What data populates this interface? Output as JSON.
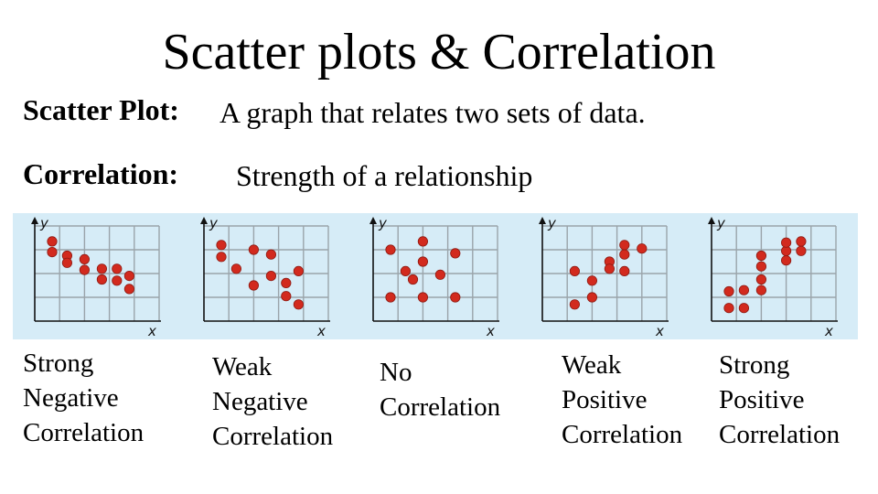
{
  "slide": {
    "title": "Scatter plots & Correlation",
    "definitions": [
      {
        "term": "Scatter Plot:",
        "text": "A graph that relates two sets of data."
      },
      {
        "term": "Correlation:",
        "text": "Strength of a relationship"
      }
    ]
  },
  "colors": {
    "strip_background": "#d6ecf7",
    "point_fill": "#d22a1e",
    "grid": "#9aa4aa",
    "axis": "#111111"
  },
  "axis_labels": {
    "x": "x",
    "y": "y"
  },
  "chart_data": [
    {
      "type": "scatter",
      "xlim": [
        0,
        5
      ],
      "ylim": [
        0,
        4
      ],
      "xlabel": "x",
      "ylabel": "y",
      "caption": [
        "Strong",
        "Negative",
        "Correlation"
      ],
      "points": [
        [
          0.7,
          3.35
        ],
        [
          0.7,
          2.9
        ],
        [
          1.3,
          2.75
        ],
        [
          1.3,
          2.45
        ],
        [
          2.0,
          2.6
        ],
        [
          2.0,
          2.15
        ],
        [
          2.7,
          2.2
        ],
        [
          2.7,
          1.75
        ],
        [
          3.3,
          2.2
        ],
        [
          3.3,
          1.7
        ],
        [
          3.8,
          1.9
        ],
        [
          3.8,
          1.35
        ]
      ]
    },
    {
      "type": "scatter",
      "xlim": [
        0,
        5
      ],
      "ylim": [
        0,
        4
      ],
      "xlabel": "x",
      "ylabel": "y",
      "caption": [
        "Weak",
        "Negative",
        "Correlation"
      ],
      "points": [
        [
          0.7,
          3.2
        ],
        [
          0.7,
          2.7
        ],
        [
          1.3,
          2.2
        ],
        [
          2.0,
          3.0
        ],
        [
          2.0,
          1.5
        ],
        [
          2.7,
          2.8
        ],
        [
          2.7,
          1.9
        ],
        [
          3.3,
          1.6
        ],
        [
          3.3,
          1.05
        ],
        [
          3.8,
          2.1
        ],
        [
          3.8,
          0.7
        ]
      ]
    },
    {
      "type": "scatter",
      "xlim": [
        0,
        5
      ],
      "ylim": [
        0,
        4
      ],
      "xlabel": "x",
      "ylabel": "y",
      "caption": [
        "No",
        "Correlation"
      ],
      "points": [
        [
          0.7,
          3.0
        ],
        [
          0.7,
          1.0
        ],
        [
          1.3,
          2.1
        ],
        [
          2.0,
          3.35
        ],
        [
          2.0,
          2.5
        ],
        [
          2.0,
          1.0
        ],
        [
          2.7,
          1.95
        ],
        [
          3.3,
          2.85
        ],
        [
          3.3,
          1.0
        ],
        [
          1.6,
          1.75
        ]
      ]
    },
    {
      "type": "scatter",
      "xlim": [
        0,
        5
      ],
      "ylim": [
        0,
        4
      ],
      "xlabel": "x",
      "ylabel": "y",
      "caption": [
        "Weak",
        "Positive",
        "Correlation"
      ],
      "points": [
        [
          1.3,
          0.7
        ],
        [
          1.3,
          2.1
        ],
        [
          2.0,
          1.7
        ],
        [
          2.0,
          1.0
        ],
        [
          2.7,
          2.5
        ],
        [
          2.7,
          2.2
        ],
        [
          3.3,
          3.2
        ],
        [
          3.3,
          2.8
        ],
        [
          3.3,
          2.1
        ],
        [
          4.0,
          3.05
        ]
      ]
    },
    {
      "type": "scatter",
      "xlim": [
        0,
        5
      ],
      "ylim": [
        0,
        4
      ],
      "xlabel": "x",
      "ylabel": "y",
      "caption": [
        "Strong",
        "Positive",
        "Correlation"
      ],
      "points": [
        [
          0.7,
          0.55
        ],
        [
          0.7,
          1.25
        ],
        [
          1.3,
          0.55
        ],
        [
          1.3,
          1.3
        ],
        [
          2.0,
          1.3
        ],
        [
          2.0,
          1.75
        ],
        [
          2.0,
          2.3
        ],
        [
          2.0,
          2.75
        ],
        [
          3.0,
          2.55
        ],
        [
          3.0,
          2.95
        ],
        [
          3.0,
          3.3
        ],
        [
          3.6,
          2.95
        ],
        [
          3.6,
          3.35
        ]
      ]
    }
  ]
}
